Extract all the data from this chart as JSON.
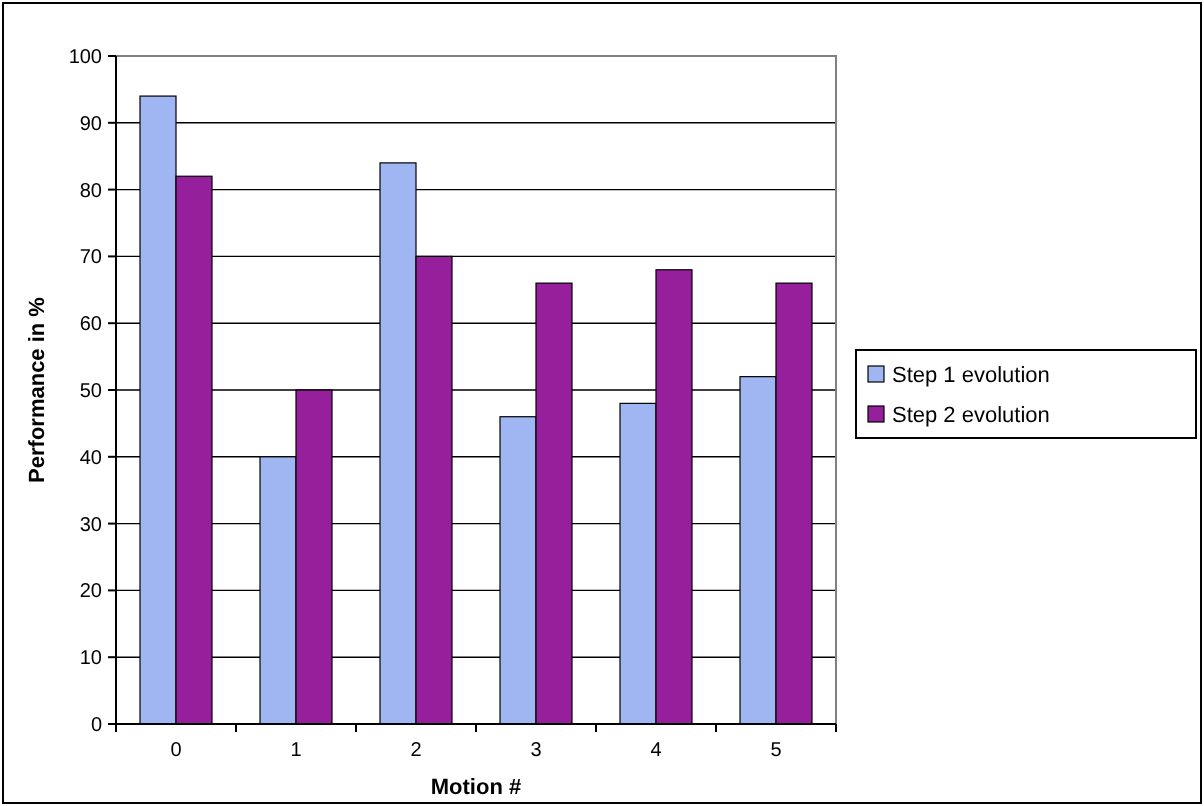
{
  "chart_data": {
    "type": "bar",
    "xlabel": "Motion #",
    "ylabel": "Performance in %",
    "categories": [
      "0",
      "1",
      "2",
      "3",
      "4",
      "5"
    ],
    "series": [
      {
        "name": "Step 1 evolution",
        "color": "#9fb6f3",
        "values": [
          94,
          40,
          84,
          46,
          48,
          52
        ]
      },
      {
        "name": "Step 2 evolution",
        "color": "#96209c",
        "values": [
          82,
          50,
          70,
          66,
          68,
          66
        ]
      }
    ],
    "ylim": [
      0,
      100
    ],
    "yticks": [
      0,
      10,
      20,
      30,
      40,
      50,
      60,
      70,
      80,
      90,
      100
    ],
    "grid": "y",
    "legend": "right"
  }
}
